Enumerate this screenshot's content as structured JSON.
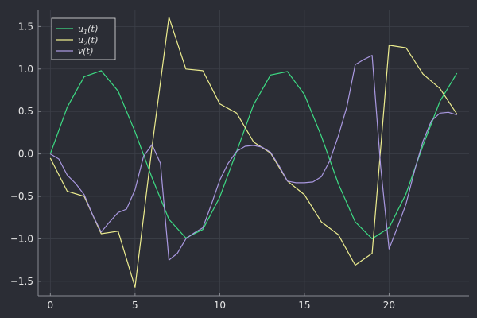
{
  "chart_data": {
    "type": "line",
    "title": "",
    "xlabel": "",
    "ylabel": "",
    "xlim": [
      -0.72,
      24.72
    ],
    "ylim": [
      -1.67,
      1.7
    ],
    "xticks": [
      0,
      5,
      10,
      15,
      20
    ],
    "yticks": [
      -1.5,
      -1.0,
      -0.5,
      0.0,
      0.5,
      1.0,
      1.5
    ],
    "xtick_labels": [
      "0",
      "5",
      "10",
      "15",
      "20"
    ],
    "ytick_labels": [
      "−1.5",
      "−1.0",
      "−0.5",
      "0.0",
      "0.5",
      "1.0",
      "1.5"
    ],
    "grid": true,
    "legend_position": "top-left",
    "series": [
      {
        "name": "u1(t)",
        "label_base": "u",
        "label_sub": "1",
        "label_suffix": "(t)",
        "color": "#3ddc84",
        "x": [
          0,
          1,
          2,
          3,
          4,
          5,
          6,
          7,
          8,
          9,
          10,
          11,
          12,
          13,
          14,
          15,
          16,
          17,
          18,
          19,
          20,
          21,
          22,
          23,
          24
        ],
        "values": [
          0.0,
          0.55,
          0.91,
          0.98,
          0.74,
          0.26,
          -0.28,
          -0.77,
          -0.99,
          -0.89,
          -0.51,
          0.03,
          0.58,
          0.93,
          0.97,
          0.7,
          0.21,
          -0.35,
          -0.8,
          -1.0,
          -0.87,
          -0.47,
          0.1,
          0.62,
          0.95
        ]
      },
      {
        "name": "u2(t)",
        "label_base": "u",
        "label_sub": "2",
        "label_suffix": "(t)",
        "color": "#ecec8e",
        "x": [
          0,
          1,
          2,
          3,
          4,
          5,
          6,
          7,
          8,
          9,
          10,
          11,
          12,
          13,
          14,
          15,
          16,
          17,
          18,
          19,
          20,
          21,
          22,
          23,
          24
        ],
        "values": [
          -0.05,
          -0.44,
          -0.5,
          -0.94,
          -0.91,
          -1.57,
          0.08,
          1.61,
          1.0,
          0.98,
          0.59,
          0.48,
          0.14,
          0.01,
          -0.32,
          -0.48,
          -0.8,
          -0.95,
          -1.31,
          -1.17,
          1.28,
          1.25,
          0.94,
          0.77,
          0.47
        ]
      },
      {
        "name": "v(t)",
        "label_base": "v",
        "label_sub": "",
        "label_suffix": "(t)",
        "color": "#a998e0",
        "x": [
          0,
          0.5,
          1,
          1.5,
          2,
          2.5,
          3,
          3.5,
          4,
          4.5,
          5,
          5.5,
          6,
          6.5,
          7,
          7.5,
          8,
          8.5,
          9,
          9.5,
          10,
          10.5,
          11,
          11.5,
          12,
          12.5,
          13,
          13.5,
          14,
          14.5,
          15,
          15.5,
          16,
          16.5,
          17,
          17.5,
          18,
          18.5,
          19,
          19.5,
          20,
          20.5,
          21,
          21.5,
          22,
          22.5,
          23,
          23.5,
          24
        ],
        "values": [
          0.0,
          -0.06,
          -0.25,
          -0.35,
          -0.48,
          -0.72,
          -0.92,
          -0.8,
          -0.69,
          -0.65,
          -0.42,
          -0.03,
          0.11,
          -0.11,
          -1.25,
          -1.17,
          -1.0,
          -0.93,
          -0.87,
          -0.6,
          -0.31,
          -0.11,
          0.03,
          0.09,
          0.1,
          0.08,
          0.02,
          -0.14,
          -0.32,
          -0.34,
          -0.34,
          -0.33,
          -0.27,
          -0.08,
          0.21,
          0.55,
          1.05,
          1.11,
          1.16,
          -0.15,
          -1.12,
          -0.86,
          -0.59,
          -0.2,
          0.15,
          0.39,
          0.48,
          0.49,
          0.46
        ]
      }
    ]
  }
}
